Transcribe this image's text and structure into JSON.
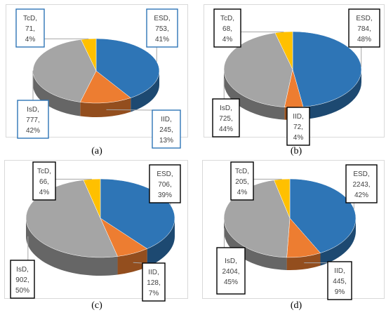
{
  "chart_data": [
    {
      "type": "pie",
      "panel": "a",
      "label_border_color": "#2e75b6",
      "slices": [
        {
          "name": "ESD",
          "value": 753,
          "percent": "41%"
        },
        {
          "name": "IID",
          "value": 245,
          "percent": "13%"
        },
        {
          "name": "IsD",
          "value": 777,
          "percent": "42%"
        },
        {
          "name": "TcD",
          "value": 71,
          "percent": "4%"
        }
      ]
    },
    {
      "type": "pie",
      "panel": "b",
      "label_border_color": "#000000",
      "slices": [
        {
          "name": "ESD",
          "value": 784,
          "percent": "48%"
        },
        {
          "name": "IID",
          "value": 72,
          "percent": "4%"
        },
        {
          "name": "IsD",
          "value": 725,
          "percent": "44%"
        },
        {
          "name": "TcD",
          "value": 68,
          "percent": "4%"
        }
      ]
    },
    {
      "type": "pie",
      "panel": "c",
      "label_border_color": "#000000",
      "slices": [
        {
          "name": "ESD",
          "value": 706,
          "percent": "39%"
        },
        {
          "name": "IID",
          "value": 128,
          "percent": "7%"
        },
        {
          "name": "IsD",
          "value": 902,
          "percent": "50%"
        },
        {
          "name": "TcD",
          "value": 66,
          "percent": "4%"
        }
      ]
    },
    {
      "type": "pie",
      "panel": "d",
      "label_border_color": "#000000",
      "slices": [
        {
          "name": "ESD",
          "value": 2243,
          "percent": "42%"
        },
        {
          "name": "IID",
          "value": 445,
          "percent": "9%"
        },
        {
          "name": "IsD",
          "value": 2404,
          "percent": "45%"
        },
        {
          "name": "TcD",
          "value": 205,
          "percent": "4%"
        }
      ]
    }
  ],
  "colors": {
    "ESD": "#2e75b6",
    "IID": "#ed7d31",
    "IsD": "#a5a5a5",
    "TcD": "#ffc000"
  },
  "captions": {
    "a": "(a)",
    "b": "(b)",
    "c": "(c)",
    "d": "(d)"
  }
}
